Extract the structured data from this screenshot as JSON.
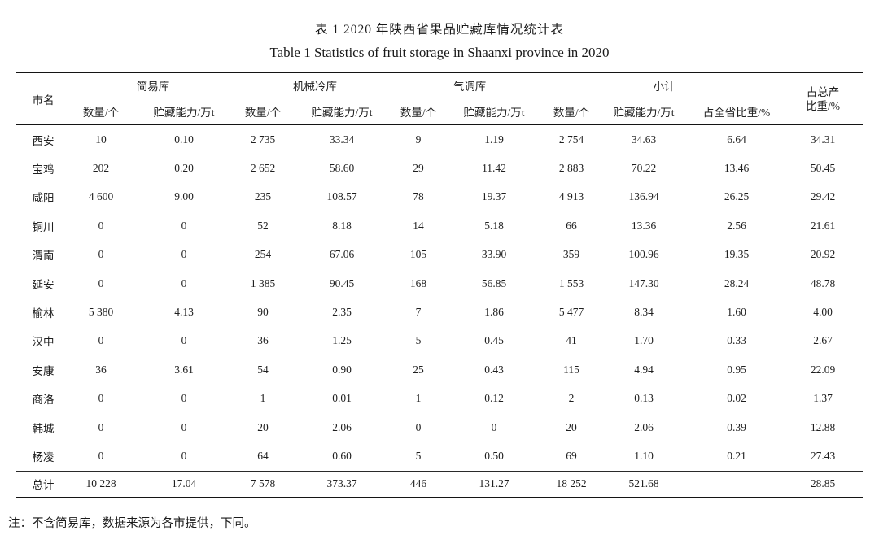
{
  "page": {
    "title_zh": "表 1  2020 年陕西省果品贮藏库情况统计表",
    "title_en": "Table 1 Statistics of fruit storage in Shaanxi province in 2020",
    "footnote": "注：不含简易库，数据来源为各市提供，下同。"
  },
  "table": {
    "city_header": "市名",
    "groups": [
      {
        "label": "简易库",
        "cols": [
          "数量/个",
          "贮藏能力/万t"
        ]
      },
      {
        "label": "机械冷库",
        "cols": [
          "数量/个",
          "贮藏能力/万t"
        ]
      },
      {
        "label": "气调库",
        "cols": [
          "数量/个",
          "贮藏能力/万t"
        ]
      },
      {
        "label": "小计",
        "cols": [
          "数量/个",
          "贮藏能力/万t",
          "占全省比重/%"
        ]
      }
    ],
    "last_header_line1": "占总产",
    "last_header_line2": "比重/%",
    "rows": [
      [
        "西安",
        "10",
        "0.10",
        "2 735",
        "33.34",
        "9",
        "1.19",
        "2 754",
        "34.63",
        "6.64",
        "34.31"
      ],
      [
        "宝鸡",
        "202",
        "0.20",
        "2 652",
        "58.60",
        "29",
        "11.42",
        "2 883",
        "70.22",
        "13.46",
        "50.45"
      ],
      [
        "咸阳",
        "4 600",
        "9.00",
        "235",
        "108.57",
        "78",
        "19.37",
        "4 913",
        "136.94",
        "26.25",
        "29.42"
      ],
      [
        "铜川",
        "0",
        "0",
        "52",
        "8.18",
        "14",
        "5.18",
        "66",
        "13.36",
        "2.56",
        "21.61"
      ],
      [
        "渭南",
        "0",
        "0",
        "254",
        "67.06",
        "105",
        "33.90",
        "359",
        "100.96",
        "19.35",
        "20.92"
      ],
      [
        "延安",
        "0",
        "0",
        "1 385",
        "90.45",
        "168",
        "56.85",
        "1 553",
        "147.30",
        "28.24",
        "48.78"
      ],
      [
        "榆林",
        "5 380",
        "4.13",
        "90",
        "2.35",
        "7",
        "1.86",
        "5 477",
        "8.34",
        "1.60",
        "4.00"
      ],
      [
        "汉中",
        "0",
        "0",
        "36",
        "1.25",
        "5",
        "0.45",
        "41",
        "1.70",
        "0.33",
        "2.67"
      ],
      [
        "安康",
        "36",
        "3.61",
        "54",
        "0.90",
        "25",
        "0.43",
        "115",
        "4.94",
        "0.95",
        "22.09"
      ],
      [
        "商洛",
        "0",
        "0",
        "1",
        "0.01",
        "1",
        "0.12",
        "2",
        "0.13",
        "0.02",
        "1.37"
      ],
      [
        "韩城",
        "0",
        "0",
        "20",
        "2.06",
        "0",
        "0",
        "20",
        "2.06",
        "0.39",
        "12.88"
      ],
      [
        "杨凌",
        "0",
        "0",
        "64",
        "0.60",
        "5",
        "0.50",
        "69",
        "1.10",
        "0.21",
        "27.43"
      ]
    ],
    "total_row": [
      "总计",
      "10 228",
      "17.04",
      "7 578",
      "373.37",
      "446",
      "131.27",
      "18 252",
      "521.68",
      "",
      "28.85"
    ]
  }
}
